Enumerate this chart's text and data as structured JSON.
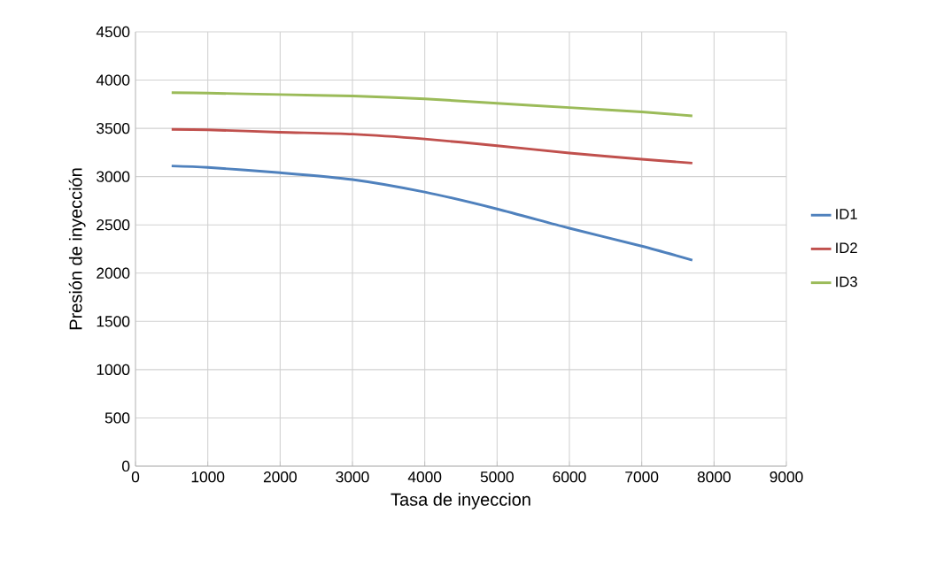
{
  "chart_data": {
    "type": "line",
    "xlabel": "Tasa de inyeccion",
    "ylabel": "Presión de inyección",
    "x": [
      500,
      1000,
      2000,
      3000,
      4000,
      5000,
      6000,
      7000,
      7700
    ],
    "series": [
      {
        "name": "ID1",
        "color": "#4f81bd",
        "values": [
          3110,
          3095,
          3040,
          2970,
          2840,
          2665,
          2465,
          2280,
          2135
        ]
      },
      {
        "name": "ID2",
        "color": "#c0504d",
        "values": [
          3490,
          3485,
          3460,
          3440,
          3390,
          3320,
          3245,
          3180,
          3140
        ]
      },
      {
        "name": "ID3",
        "color": "#9bbb59",
        "values": [
          3870,
          3865,
          3850,
          3835,
          3805,
          3760,
          3715,
          3670,
          3630
        ]
      }
    ],
    "xlim": [
      0,
      9000
    ],
    "xticks": [
      0,
      1000,
      2000,
      3000,
      4000,
      5000,
      6000,
      7000,
      8000,
      9000
    ],
    "ylim": [
      0,
      4500
    ],
    "yticks": [
      0,
      500,
      1000,
      1500,
      2000,
      2500,
      3000,
      3500,
      4000,
      4500
    ],
    "grid": true,
    "legend": "right",
    "marker": "none",
    "line_style": "solid"
  }
}
